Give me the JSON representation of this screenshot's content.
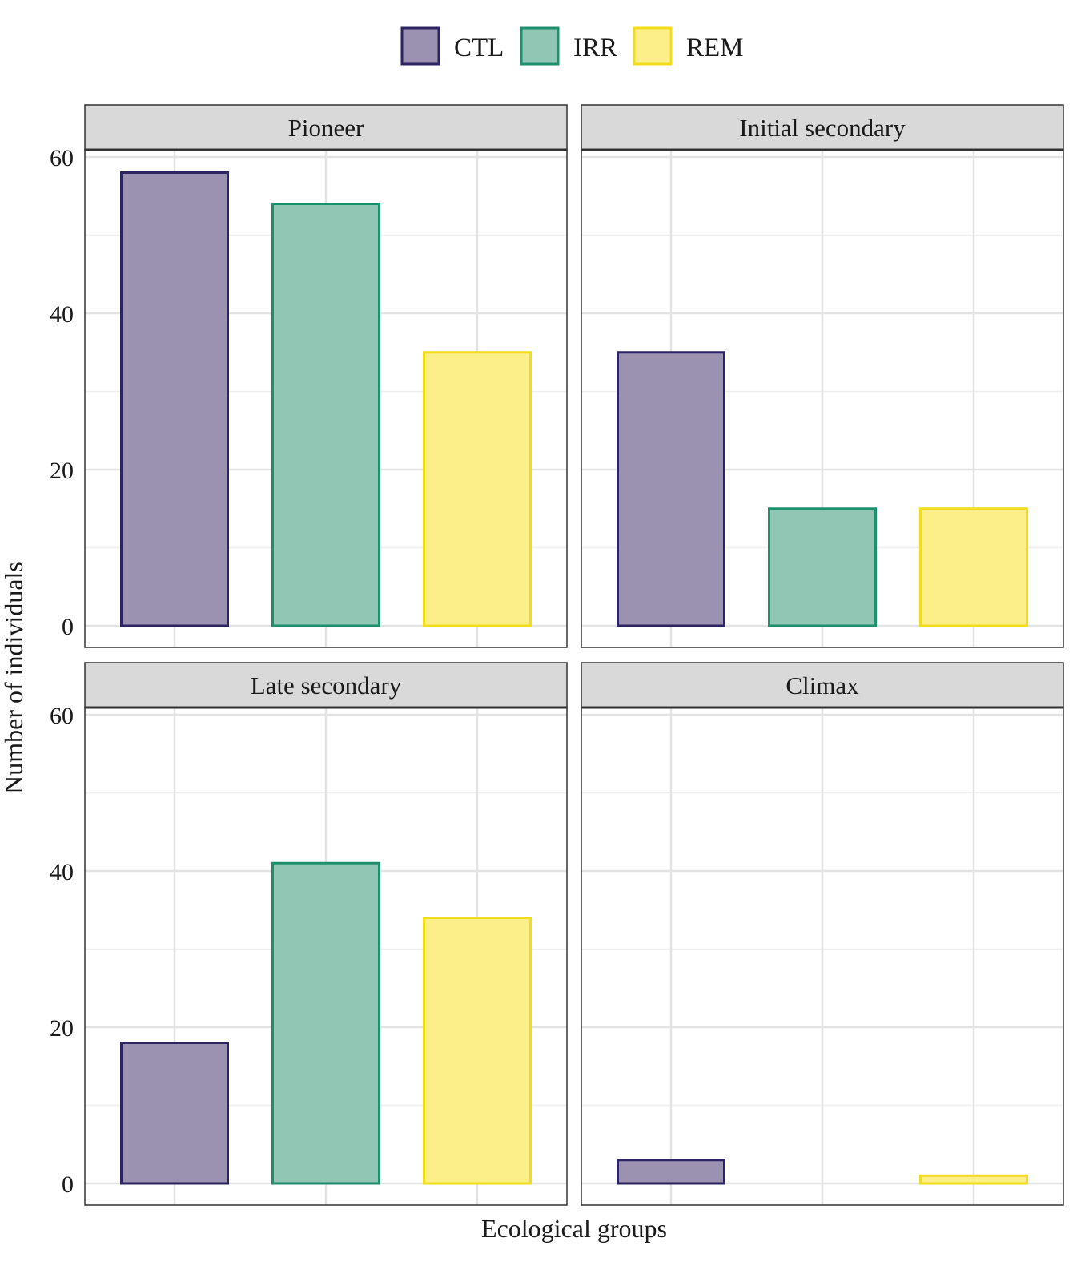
{
  "chart_data": {
    "type": "bar",
    "layout": "facet-grid-2x2",
    "xlabel": "Ecological groups",
    "ylabel": "Number of individuals",
    "ylim": [
      0,
      60
    ],
    "yticks": [
      0,
      20,
      40,
      60
    ],
    "grid": true,
    "legend_position": "top",
    "series": [
      {
        "name": "CTL",
        "fill": "#9b91b1",
        "stroke": "#2d2463"
      },
      {
        "name": "IRR",
        "fill": "#92c6b4",
        "stroke": "#1e8f6c"
      },
      {
        "name": "REM",
        "fill": "#fcef8a",
        "stroke": "#f2dc1c"
      }
    ],
    "panels": [
      {
        "title": "Pioneer",
        "values": [
          58,
          54,
          35
        ]
      },
      {
        "title": "Initial secondary",
        "values": [
          35,
          15,
          15
        ]
      },
      {
        "title": "Late secondary",
        "values": [
          18,
          41,
          34
        ]
      },
      {
        "title": "Climax",
        "values": [
          3,
          0,
          1
        ]
      }
    ]
  }
}
